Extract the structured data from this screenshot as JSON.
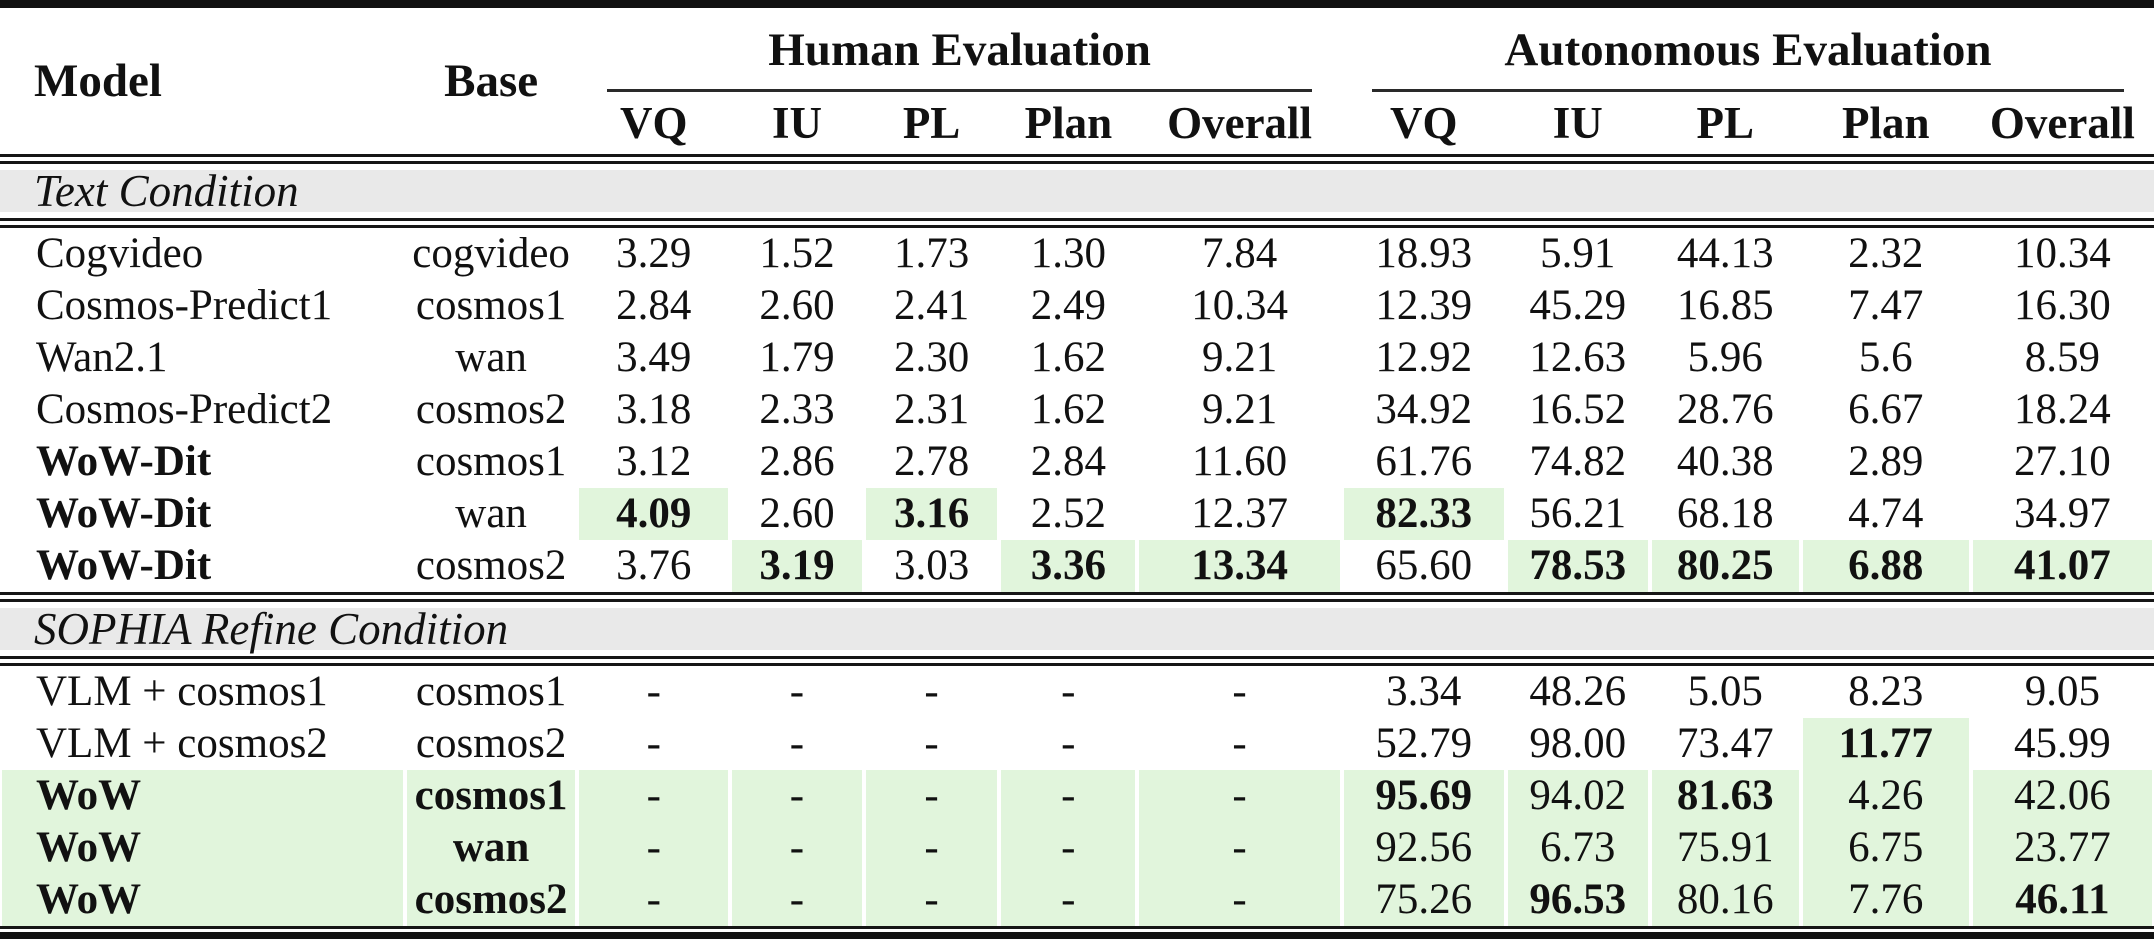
{
  "header": {
    "model_label": "Model",
    "base_label": "Base",
    "groups": [
      {
        "label": "Human Evaluation"
      },
      {
        "label": "Autonomous Evaluation"
      }
    ],
    "subcolumns": [
      "VQ",
      "IU",
      "PL",
      "Plan",
      "Overall"
    ]
  },
  "sections": [
    {
      "title": "Text Condition",
      "rows": [
        {
          "model": "Cogvideo",
          "base": "cogvideo",
          "values": [
            {
              "t": "3.29"
            },
            {
              "t": "1.52"
            },
            {
              "t": "1.73"
            },
            {
              "t": "1.30"
            },
            {
              "t": "7.84"
            },
            {
              "t": "18.93"
            },
            {
              "t": "5.91"
            },
            {
              "t": "44.13"
            },
            {
              "t": "2.32"
            },
            {
              "t": "10.34"
            }
          ]
        },
        {
          "model": "Cosmos-Predict1",
          "base": "cosmos1",
          "values": [
            {
              "t": "2.84"
            },
            {
              "t": "2.60"
            },
            {
              "t": "2.41"
            },
            {
              "t": "2.49"
            },
            {
              "t": "10.34"
            },
            {
              "t": "12.39"
            },
            {
              "t": "45.29"
            },
            {
              "t": "16.85"
            },
            {
              "t": "7.47"
            },
            {
              "t": "16.30"
            }
          ]
        },
        {
          "model": "Wan2.1",
          "base": "wan",
          "values": [
            {
              "t": "3.49"
            },
            {
              "t": "1.79"
            },
            {
              "t": "2.30"
            },
            {
              "t": "1.62"
            },
            {
              "t": "9.21"
            },
            {
              "t": "12.92"
            },
            {
              "t": "12.63"
            },
            {
              "t": "5.96"
            },
            {
              "t": "5.6"
            },
            {
              "t": "8.59"
            }
          ]
        },
        {
          "model": "Cosmos-Predict2",
          "base": "cosmos2",
          "values": [
            {
              "t": "3.18"
            },
            {
              "t": "2.33"
            },
            {
              "t": "2.31"
            },
            {
              "t": "1.62"
            },
            {
              "t": "9.21"
            },
            {
              "t": "34.92"
            },
            {
              "t": "16.52"
            },
            {
              "t": "28.76"
            },
            {
              "t": "6.67"
            },
            {
              "t": "18.24"
            }
          ]
        },
        {
          "model": "WoW-Dit",
          "model_bold": true,
          "base": "cosmos1",
          "values": [
            {
              "t": "3.12"
            },
            {
              "t": "2.86"
            },
            {
              "t": "2.78"
            },
            {
              "t": "2.84"
            },
            {
              "t": "11.60"
            },
            {
              "t": "61.76"
            },
            {
              "t": "74.82"
            },
            {
              "t": "40.38"
            },
            {
              "t": "2.89"
            },
            {
              "t": "27.10"
            }
          ]
        },
        {
          "model": "WoW-Dit",
          "model_bold": true,
          "base": "wan",
          "values": [
            {
              "t": "4.09",
              "b": true,
              "h": true
            },
            {
              "t": "2.60"
            },
            {
              "t": "3.16",
              "b": true,
              "h": true
            },
            {
              "t": "2.52"
            },
            {
              "t": "12.37"
            },
            {
              "t": "82.33",
              "b": true,
              "h": true
            },
            {
              "t": "56.21"
            },
            {
              "t": "68.18"
            },
            {
              "t": "4.74"
            },
            {
              "t": "34.97"
            }
          ]
        },
        {
          "model": "WoW-Dit",
          "model_bold": true,
          "base": "cosmos2",
          "values": [
            {
              "t": "3.76"
            },
            {
              "t": "3.19",
              "b": true,
              "h": true
            },
            {
              "t": "3.03"
            },
            {
              "t": "3.36",
              "b": true,
              "h": true
            },
            {
              "t": "13.34",
              "b": true,
              "h": true
            },
            {
              "t": "65.60"
            },
            {
              "t": "78.53",
              "b": true,
              "h": true
            },
            {
              "t": "80.25",
              "b": true,
              "h": true
            },
            {
              "t": "6.88",
              "b": true,
              "h": true
            },
            {
              "t": "41.07",
              "b": true,
              "h": true
            }
          ]
        }
      ]
    },
    {
      "title": "SOPHIA Refine Condition",
      "rows": [
        {
          "model": "VLM + cosmos1",
          "base": "cosmos1",
          "values": [
            {
              "t": "-"
            },
            {
              "t": "-"
            },
            {
              "t": "-"
            },
            {
              "t": "-"
            },
            {
              "t": "-"
            },
            {
              "t": "3.34"
            },
            {
              "t": "48.26"
            },
            {
              "t": "5.05"
            },
            {
              "t": "8.23"
            },
            {
              "t": "9.05"
            }
          ]
        },
        {
          "model": "VLM + cosmos2",
          "base": "cosmos2",
          "values": [
            {
              "t": "-"
            },
            {
              "t": "-"
            },
            {
              "t": "-"
            },
            {
              "t": "-"
            },
            {
              "t": "-"
            },
            {
              "t": "52.79"
            },
            {
              "t": "98.00"
            },
            {
              "t": "73.47"
            },
            {
              "t": "11.77",
              "b": true,
              "h": true
            },
            {
              "t": "45.99"
            }
          ]
        },
        {
          "model": "WoW",
          "model_bold": true,
          "base": "cosmos1",
          "base_bold": true,
          "row_hl": true,
          "values": [
            {
              "t": "-"
            },
            {
              "t": "-"
            },
            {
              "t": "-"
            },
            {
              "t": "-"
            },
            {
              "t": "-"
            },
            {
              "t": "95.69",
              "b": true
            },
            {
              "t": "94.02"
            },
            {
              "t": "81.63",
              "b": true
            },
            {
              "t": "4.26"
            },
            {
              "t": "42.06"
            }
          ]
        },
        {
          "model": "WoW",
          "model_bold": true,
          "base": "wan",
          "base_bold": true,
          "row_hl": true,
          "values": [
            {
              "t": "-"
            },
            {
              "t": "-"
            },
            {
              "t": "-"
            },
            {
              "t": "-"
            },
            {
              "t": "-"
            },
            {
              "t": "92.56"
            },
            {
              "t": "6.73"
            },
            {
              "t": "75.91"
            },
            {
              "t": "6.75"
            },
            {
              "t": "23.77"
            }
          ]
        },
        {
          "model": "WoW",
          "model_bold": true,
          "base": "cosmos2",
          "base_bold": true,
          "row_hl": true,
          "values": [
            {
              "t": "-"
            },
            {
              "t": "-"
            },
            {
              "t": "-"
            },
            {
              "t": "-"
            },
            {
              "t": "-"
            },
            {
              "t": "75.26"
            },
            {
              "t": "96.53",
              "b": true
            },
            {
              "t": "80.16"
            },
            {
              "t": "7.76"
            },
            {
              "t": "46.11",
              "b": true
            }
          ]
        }
      ]
    }
  ],
  "colors": {
    "highlight_green": "#e1f5dc",
    "section_band_gray": "#e9e9e9",
    "rule_black": "#161616",
    "text": "#111111"
  }
}
